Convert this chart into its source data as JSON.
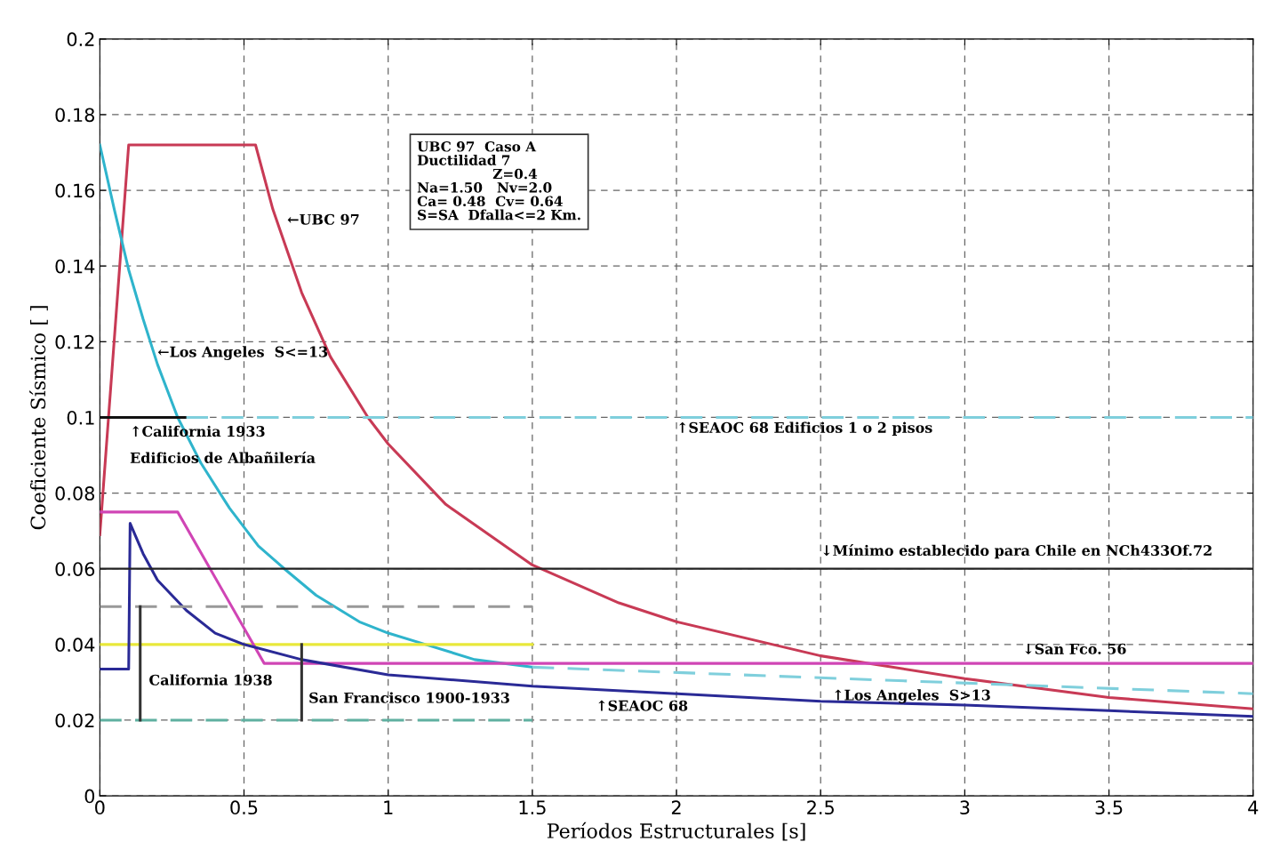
{
  "chart_data": {
    "type": "line",
    "xlabel": "Períodos Estructurales [s]",
    "ylabel": "Coeficiente Sísmico [ ]",
    "xlim": [
      0,
      4
    ],
    "ylim": [
      0,
      0.2
    ],
    "xticks": [
      0,
      0.5,
      1,
      1.5,
      2,
      2.5,
      3,
      3.5,
      4
    ],
    "yticks": [
      0,
      0.02,
      0.04,
      0.06,
      0.08,
      0.1,
      0.12,
      0.14,
      0.16,
      0.18,
      0.2
    ],
    "grid": true,
    "marker": "none",
    "series": [
      {
        "color": "#c83a55",
        "line_style": "solid",
        "x": [
          0,
          0.1,
          0.54,
          0.6,
          0.7,
          0.8,
          0.93,
          1.0,
          1.2,
          1.5,
          1.8,
          2.0,
          2.5,
          3.0,
          3.5,
          4.0
        ],
        "values": [
          0.069,
          0.172,
          0.172,
          0.155,
          0.133,
          0.116,
          0.1,
          0.093,
          0.077,
          0.061,
          0.051,
          0.046,
          0.037,
          0.031,
          0.026,
          0.023
        ]
      },
      {
        "color": "#2fb4cc",
        "line_style": "solid",
        "x": [
          0,
          0.05,
          0.1,
          0.15,
          0.2,
          0.27,
          0.35,
          0.45,
          0.55,
          0.64,
          0.75,
          0.9,
          1.0,
          1.13,
          1.3,
          1.5
        ],
        "values": [
          0.172,
          0.155,
          0.139,
          0.126,
          0.114,
          0.1,
          0.088,
          0.076,
          0.066,
          0.06,
          0.053,
          0.046,
          0.043,
          0.04,
          0.036,
          0.034
        ]
      },
      {
        "color": "#7fcfdc",
        "line_style": "dashed",
        "x": [
          1.5,
          4
        ],
        "values": [
          0.034,
          0.027
        ]
      },
      {
        "color": "#e8e83a",
        "line_style": "solid",
        "x": [
          0,
          1.5
        ],
        "values": [
          0.04,
          0.04
        ]
      },
      {
        "color": "#d045b5",
        "line_style": "solid",
        "x": [
          0,
          0.27,
          0.57,
          4
        ],
        "values": [
          0.075,
          0.075,
          0.035,
          0.035
        ]
      },
      {
        "color": "#2a2a96",
        "line_style": "solid",
        "x": [
          0,
          0.1,
          0.105,
          0.15,
          0.2,
          0.3,
          0.4,
          0.5,
          0.7,
          1.0,
          1.5,
          2.0,
          2.5,
          3.0,
          3.5,
          4.0
        ],
        "values": [
          0.0335,
          0.0335,
          0.072,
          0.064,
          0.057,
          0.049,
          0.043,
          0.04,
          0.036,
          0.032,
          0.029,
          0.027,
          0.025,
          0.024,
          0.0225,
          0.021
        ]
      },
      {
        "color": "#111111",
        "line_style": "solid",
        "x": [
          0,
          0.3
        ],
        "values": [
          0.1,
          0.1
        ]
      },
      {
        "color": "#7fcfdc",
        "line_style": "dashed",
        "x": [
          0.3,
          4
        ],
        "values": [
          0.1,
          0.1
        ]
      },
      {
        "color": "#999999",
        "line_style": "dashed",
        "x": [
          0,
          1.5
        ],
        "values": [
          0.05,
          0.05
        ]
      },
      {
        "color": "#5fb0a0",
        "line_style": "dashed",
        "x": [
          0,
          1.5
        ],
        "values": [
          0.02,
          0.02
        ]
      },
      {
        "color": "#333333",
        "line_style": "solid",
        "x": [
          0.14,
          0.14
        ],
        "values": [
          0.02,
          0.05
        ]
      },
      {
        "color": "#333333",
        "line_style": "solid",
        "x": [
          0.7,
          0.7
        ],
        "values": [
          0.02,
          0.04
        ]
      }
    ],
    "ref_lines": [
      {
        "axis": "y",
        "value": 0.06,
        "color": "#222222",
        "line_style": "solid"
      }
    ],
    "annotations": [
      "UBC 97  Caso A\nDuctilidad 7\n                Z=0.4\nNa=1.50   Nv=2.0\nCa= 0.48  Cv= 0.64\nS=SA  Dfalla<=2 Km.",
      "←UBC 97",
      "←Los Angeles  S<=13",
      "↑California 1933",
      "Edificios de Albañilería",
      "↑SEAOC 68 Edificios 1 o 2 pisos",
      "↓Mínimo establecido para Chile en NCh433Of.72",
      "↓San Fco. 56",
      "↑Los Angeles  S>13",
      "↑SEAOC 68",
      "California 1938",
      "San Francisco 1900-1933"
    ]
  }
}
